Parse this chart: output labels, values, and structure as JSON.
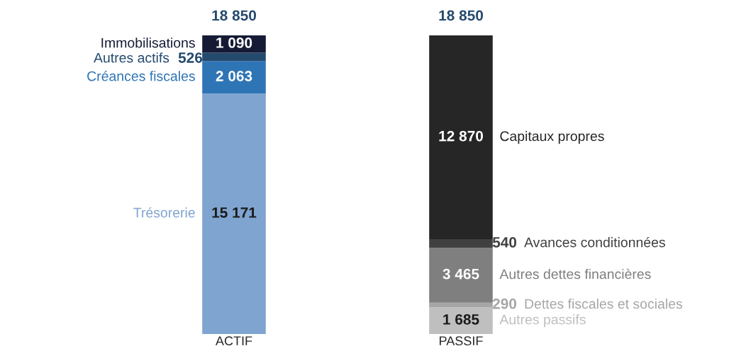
{
  "chart_data": {
    "type": "bar",
    "stacked": true,
    "categories": [
      "ACTIF",
      "PASSIF"
    ],
    "legend": false,
    "totals": [
      "18 850",
      "18 850"
    ],
    "series": [
      {
        "name": "Trésorerie",
        "color": "#7fa4d0",
        "values": [
          15171,
          null
        ],
        "value_labels": [
          "15 171",
          null
        ]
      },
      {
        "name": "Créances fiscales",
        "color": "#2e75b6",
        "values": [
          2063,
          null
        ],
        "value_labels": [
          "2 063",
          null
        ]
      },
      {
        "name": "Autres actifs",
        "color": "#244a6e",
        "values": [
          526,
          null
        ],
        "value_labels": [
          "526",
          null
        ]
      },
      {
        "name": "Immobilisations",
        "color": "#161b35",
        "values": [
          1090,
          null
        ],
        "value_labels": [
          "1 090",
          null
        ]
      },
      {
        "name": "Autres passifs",
        "color": "#bfbfbf",
        "values": [
          null,
          1685
        ],
        "value_labels": [
          null,
          "1 685"
        ]
      },
      {
        "name": "Dettes fiscales et sociales",
        "color": "#a6a6a6",
        "values": [
          null,
          290
        ],
        "value_labels": [
          null,
          "290"
        ]
      },
      {
        "name": "Autres dettes financières",
        "color": "#7f7f7f",
        "values": [
          null,
          3465
        ],
        "value_labels": [
          null,
          "3 465"
        ]
      },
      {
        "name": "Avances conditionnées",
        "color": "#404040",
        "values": [
          null,
          540
        ],
        "value_labels": [
          null,
          "540"
        ]
      },
      {
        "name": "Capitaux propres",
        "color": "#262626",
        "values": [
          null,
          12870
        ],
        "value_labels": [
          null,
          "12 870"
        ]
      }
    ]
  }
}
